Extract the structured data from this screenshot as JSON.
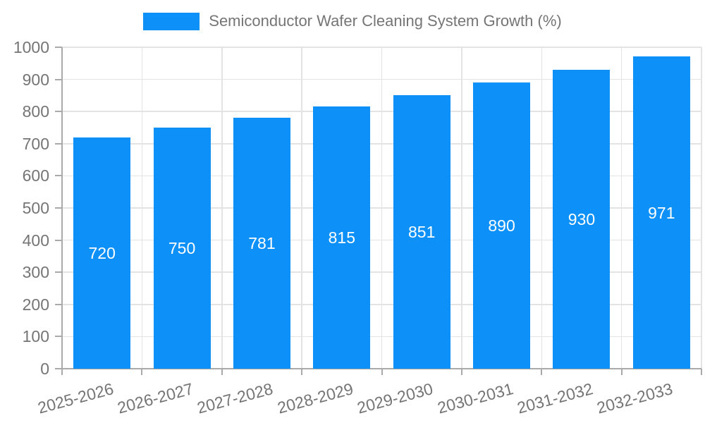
{
  "legend": {
    "label": "Semiconductor Wafer Cleaning System Growth (%)"
  },
  "chart_data": {
    "type": "bar",
    "title": "Semiconductor Wafer Cleaning System Growth (%)",
    "series_name": "Semiconductor Wafer Cleaning System Growth (%)",
    "categories": [
      "2025-2026",
      "2026-2027",
      "2027-2028",
      "2028-2029",
      "2029-2030",
      "2030-2031",
      "2031-2032",
      "2032-2033"
    ],
    "values": [
      720,
      750,
      781,
      815,
      851,
      890,
      930,
      971
    ],
    "value_labels": [
      "720",
      "750",
      "781",
      "815",
      "851",
      "890",
      "930",
      "971"
    ],
    "xlabel": "",
    "ylabel": "",
    "ylim": [
      0,
      1000
    ],
    "ytick_step": 100,
    "ytick_labels": [
      "0",
      "100",
      "200",
      "300",
      "400",
      "500",
      "600",
      "700",
      "800",
      "900",
      "1000"
    ],
    "grid": "horizontal-and-vertical",
    "legend_position": "top-center",
    "value_label_position": "inside-center",
    "x_label_rotation_deg": -15,
    "colors": {
      "bar": "#0E90F9",
      "value_label": "#FFFFFF",
      "axis_text": "#757575",
      "gridline": "#E3E3E3",
      "axis_line": "#AAAAAA",
      "background": "#FFFFFF"
    }
  }
}
